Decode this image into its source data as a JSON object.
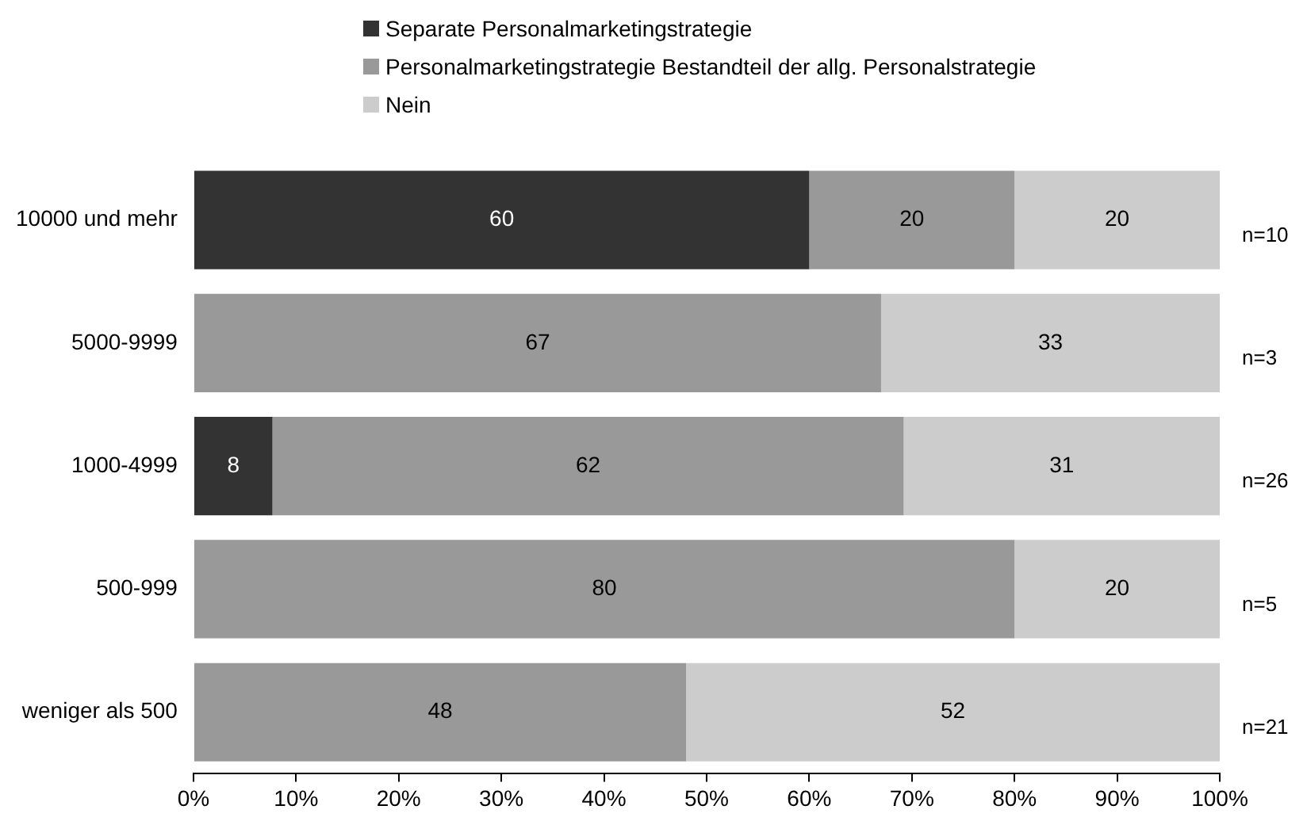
{
  "chart_data": {
    "type": "bar",
    "orientation": "horizontal",
    "stacked": true,
    "legend": "top",
    "grid": false,
    "categories": [
      "10000 und mehr",
      "5000-9999",
      "1000-4999",
      "500-999",
      "weniger als 500"
    ],
    "series": [
      {
        "name": "Separate Personalmarketingstrategie",
        "color": "#333333",
        "values": [
          60,
          null,
          7.7,
          null,
          null
        ],
        "value_labels": [
          "60",
          null,
          "8",
          null,
          null
        ]
      },
      {
        "name": "Personalmarketingstrategie Bestandteil der allg. Personalstrategie",
        "color": "#999999",
        "values": [
          20,
          67,
          61.5,
          80,
          48
        ],
        "value_labels": [
          "20",
          "67",
          "62",
          "80",
          "48"
        ]
      },
      {
        "name": "Nein",
        "color": "#cccccc",
        "values": [
          20,
          33,
          30.8,
          20,
          52
        ],
        "value_labels": [
          "20",
          "33",
          "31",
          "20",
          "52"
        ]
      }
    ],
    "xlim": [
      0,
      100
    ],
    "xticks": [
      {
        "value": 0,
        "label": "0%"
      },
      {
        "value": 10,
        "label": "10%"
      },
      {
        "value": 20,
        "label": "20%"
      },
      {
        "value": 30,
        "label": "30%"
      },
      {
        "value": 40,
        "label": "40%"
      },
      {
        "value": 50,
        "label": "50%"
      },
      {
        "value": 60,
        "label": "60%"
      },
      {
        "value": 70,
        "label": "70%"
      },
      {
        "value": 80,
        "label": "80%"
      },
      {
        "value": 90,
        "label": "90%"
      },
      {
        "value": 100,
        "label": "100%"
      }
    ],
    "annotations": [
      "n=10",
      "n=3",
      "n=26",
      "n=5",
      "n=21"
    ]
  }
}
